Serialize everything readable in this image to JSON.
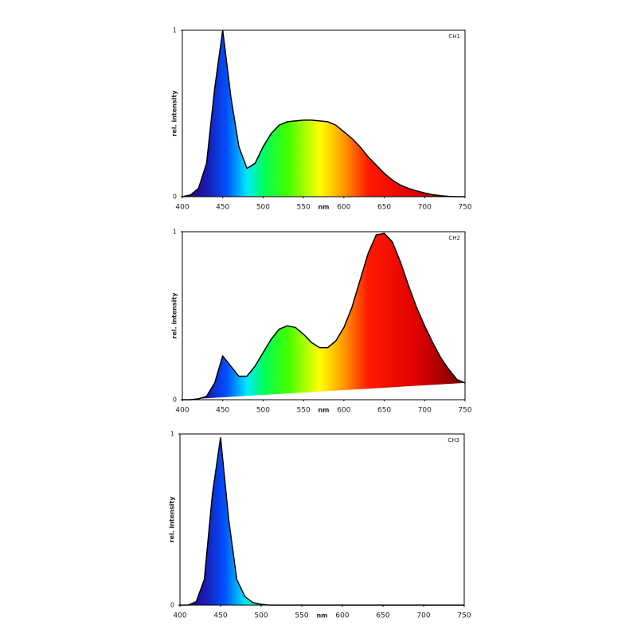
{
  "chart_data": [
    {
      "type": "area",
      "title": "CH1",
      "xlabel": "nm",
      "ylabel": "rel. intensity",
      "x": [
        400,
        410,
        420,
        430,
        440,
        450,
        460,
        470,
        480,
        490,
        500,
        510,
        520,
        530,
        540,
        550,
        560,
        570,
        580,
        590,
        600,
        610,
        620,
        630,
        640,
        650,
        660,
        670,
        680,
        690,
        700,
        710,
        720,
        730,
        740,
        750
      ],
      "values": [
        0,
        0.01,
        0.05,
        0.2,
        0.65,
        1.0,
        0.6,
        0.3,
        0.17,
        0.2,
        0.3,
        0.38,
        0.43,
        0.45,
        0.455,
        0.46,
        0.46,
        0.455,
        0.45,
        0.43,
        0.39,
        0.35,
        0.3,
        0.24,
        0.19,
        0.14,
        0.1,
        0.07,
        0.05,
        0.035,
        0.022,
        0.012,
        0.006,
        0.002,
        0,
        0
      ],
      "xlim": [
        400,
        750
      ],
      "ylim": [
        0,
        1
      ],
      "xticks": [
        400,
        450,
        500,
        550,
        600,
        650,
        700,
        750
      ],
      "yticks": [
        0,
        1
      ],
      "line_color": "#000000"
    },
    {
      "type": "area",
      "title": "CH2",
      "xlabel": "nm",
      "ylabel": "rel. intensity",
      "x": [
        400,
        410,
        420,
        430,
        440,
        450,
        460,
        470,
        480,
        490,
        500,
        510,
        520,
        530,
        540,
        550,
        560,
        570,
        580,
        590,
        600,
        610,
        620,
        630,
        640,
        650,
        660,
        670,
        680,
        690,
        700,
        710,
        720,
        730,
        740,
        750
      ],
      "values": [
        0,
        0,
        0.005,
        0.02,
        0.1,
        0.26,
        0.2,
        0.14,
        0.14,
        0.2,
        0.28,
        0.36,
        0.42,
        0.44,
        0.43,
        0.39,
        0.34,
        0.31,
        0.31,
        0.35,
        0.43,
        0.55,
        0.71,
        0.87,
        0.98,
        0.99,
        0.94,
        0.82,
        0.68,
        0.55,
        0.44,
        0.34,
        0.25,
        0.18,
        0.12,
        0.1
      ],
      "xlim": [
        400,
        750
      ],
      "ylim": [
        0,
        1
      ],
      "xticks": [
        400,
        450,
        500,
        550,
        600,
        650,
        700,
        750
      ],
      "yticks": [
        0,
        1
      ],
      "line_color": "#000000"
    },
    {
      "type": "area",
      "title": "CH3",
      "xlabel": "nm",
      "ylabel": "rel. intensity",
      "x": [
        400,
        410,
        420,
        430,
        440,
        450,
        460,
        470,
        480,
        490,
        500,
        510,
        520,
        530,
        540,
        550,
        560,
        570,
        580,
        590,
        600,
        610,
        620,
        630,
        640,
        650,
        660,
        670,
        680,
        690,
        700,
        710,
        720,
        730,
        740,
        750
      ],
      "values": [
        0,
        0,
        0.02,
        0.15,
        0.65,
        0.98,
        0.5,
        0.15,
        0.05,
        0.015,
        0.005,
        0,
        0,
        0,
        0,
        0,
        0,
        0,
        0,
        0,
        0,
        0,
        0,
        0,
        0,
        0,
        0,
        0,
        0,
        0,
        0,
        0,
        0,
        0,
        0,
        0
      ],
      "xlim": [
        400,
        750
      ],
      "ylim": [
        0,
        1
      ],
      "xticks": [
        400,
        450,
        500,
        550,
        600,
        650,
        700,
        750
      ],
      "yticks": [
        0,
        1
      ],
      "line_color": "#000000"
    }
  ]
}
